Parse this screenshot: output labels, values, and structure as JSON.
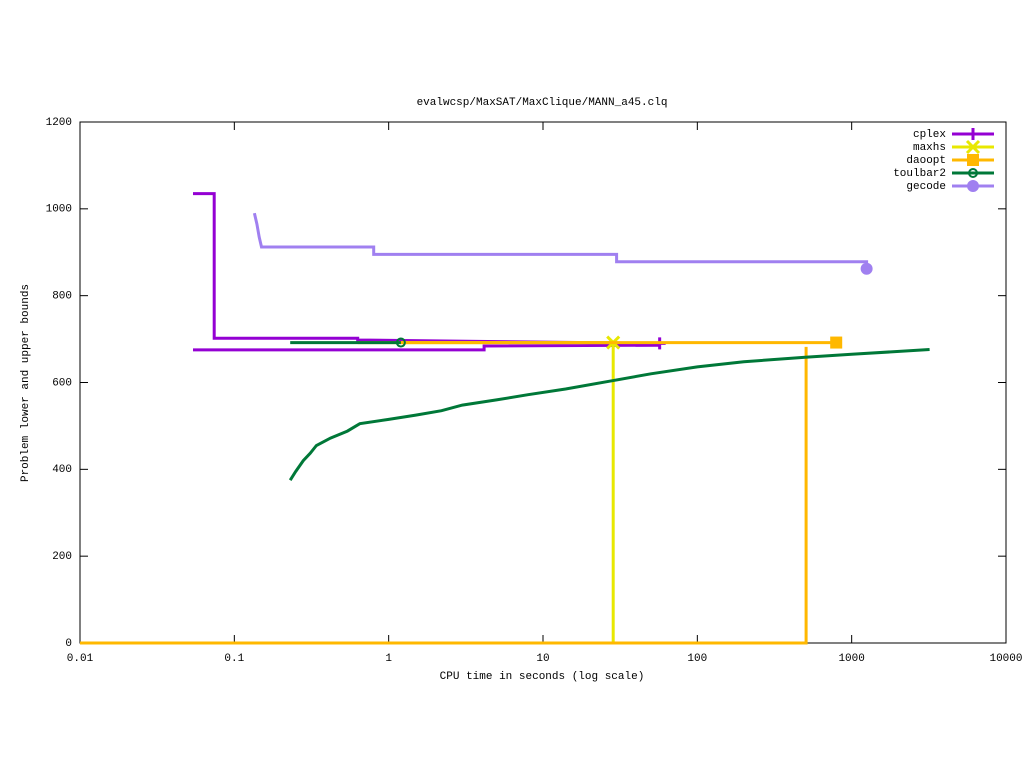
{
  "chart_data": {
    "type": "line",
    "title": "evalwcsp/MaxSAT/MaxClique/MANN_a45.clq",
    "x_label": "CPU time in seconds (log scale)",
    "y_label": "Problem lower and upper bounds",
    "x_log": true,
    "xlim": [
      0.01,
      10000
    ],
    "xticks": [
      0.01,
      0.1,
      1,
      10,
      100,
      1000,
      10000
    ],
    "ylim": [
      0,
      1200
    ],
    "yticks": [
      0,
      200,
      400,
      600,
      800,
      1000,
      1200
    ],
    "legend": "top-right",
    "series": [
      {
        "name": "cplex",
        "color": "#9400d3",
        "marker": "plus",
        "x": [
          0.054,
          0.074,
          0.074,
          0.63,
          0.63,
          57,
          null,
          0.054,
          4.15,
          4.15,
          57
        ],
        "values": [
          1035,
          1035,
          702,
          702,
          698,
          690,
          null,
          675,
          675,
          684,
          686
        ]
      },
      {
        "name": "maxhs",
        "color": "#e8e800",
        "marker": "cross",
        "x": [
          1.2,
          28.5,
          null,
          28.5,
          28.5,
          0.01
        ],
        "values": [
          692,
          692,
          null,
          692,
          0,
          0
        ]
      },
      {
        "name": "daoopt",
        "color": "#ffb800",
        "marker": "square",
        "x": [
          0.63,
          794,
          null,
          0.01,
          507,
          507
        ],
        "values": [
          692,
          692,
          null,
          0,
          0,
          682
        ]
      },
      {
        "name": "toulbar2",
        "color": "#007838",
        "marker": "circle",
        "x": [
          0.23,
          1.2,
          null,
          0.23,
          0.25,
          0.28,
          0.31,
          0.34,
          0.42,
          0.54,
          0.65,
          1.0,
          1.5,
          2.2,
          3.0,
          5,
          8,
          14,
          27,
          50,
          100,
          200,
          500,
          1000,
          3200
        ],
        "values": [
          692,
          692,
          null,
          375,
          395,
          420,
          437,
          455,
          472,
          488,
          505,
          515,
          525,
          535,
          548,
          560,
          572,
          585,
          603,
          620,
          636,
          648,
          658,
          665,
          676
        ]
      },
      {
        "name": "gecode",
        "color": "#a080f0",
        "marker": "dot",
        "x": [
          0.135,
          0.14,
          0.145,
          0.15,
          0.8,
          0.8,
          30,
          30,
          1250,
          1250
        ],
        "values": [
          990,
          965,
          935,
          912,
          912,
          895,
          895,
          878,
          878,
          862
        ]
      }
    ]
  }
}
